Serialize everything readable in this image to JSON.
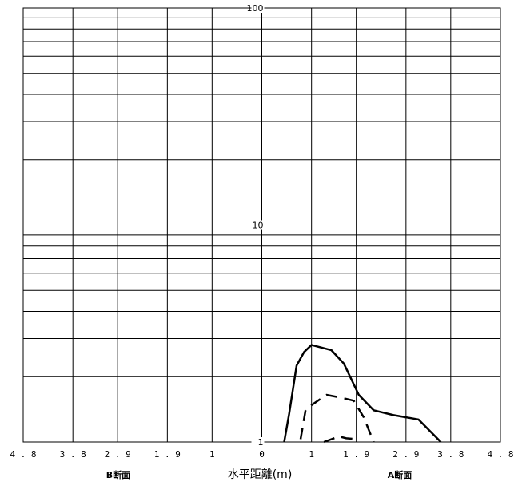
{
  "chart_data": {
    "type": "line",
    "title": "",
    "xlabel": "水平距離(m)",
    "ylabel": "",
    "x_tick_labels": [
      "4.8",
      "3.8",
      "2.9",
      "1.9",
      "1",
      "0",
      "1",
      "1.9",
      "2.9",
      "3.8",
      "4.8"
    ],
    "x_tick_values": [
      -4.8,
      -3.8,
      -2.9,
      -1.9,
      -1,
      0,
      1,
      1.9,
      2.9,
      3.8,
      4.8
    ],
    "y_tick_labels": [
      "1",
      "10",
      "100"
    ],
    "y_tick_values": [
      1,
      10,
      100
    ],
    "y_scale": "log",
    "ylim": [
      1,
      100
    ],
    "xlim": [
      -4.8,
      4.8
    ],
    "grid": true,
    "section_labels": {
      "left": "B断面",
      "right": "A断面"
    },
    "series": [
      {
        "style": "solid",
        "x": [
          0.45,
          0.55,
          0.7,
          0.85,
          1.0,
          1.4,
          1.65,
          1.95,
          2.25,
          2.65,
          3.15,
          3.6
        ],
        "y": [
          1.0,
          1.35,
          2.25,
          2.6,
          2.8,
          2.65,
          2.3,
          1.65,
          1.4,
          1.33,
          1.27,
          1.0
        ]
      },
      {
        "style": "dashed",
        "x": [
          0.78,
          0.88,
          1.0,
          1.3,
          1.6,
          1.85,
          2.05,
          2.25
        ],
        "y": [
          1.03,
          1.4,
          1.48,
          1.65,
          1.6,
          1.55,
          1.3,
          1.0
        ]
      },
      {
        "style": "dashed",
        "x": [
          1.25,
          1.55,
          1.7,
          1.9
        ],
        "y": [
          1.0,
          1.06,
          1.04,
          1.03
        ]
      }
    ]
  }
}
